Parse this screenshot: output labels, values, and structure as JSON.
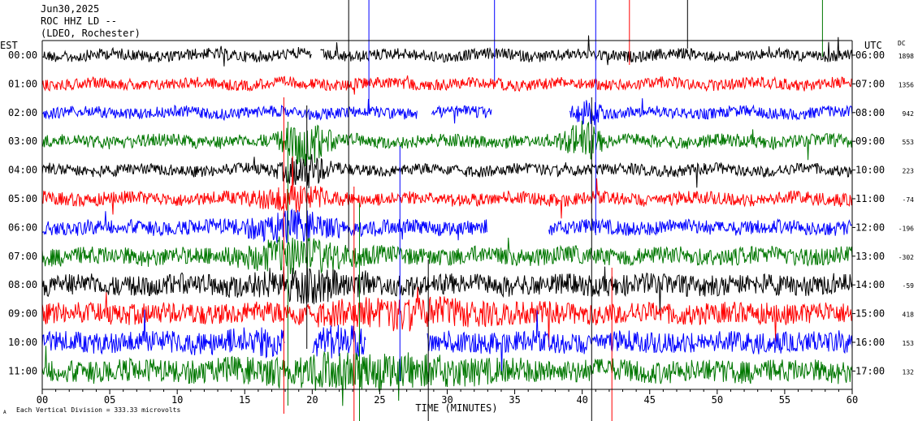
{
  "header": {
    "date": "Jun30,2025",
    "station": "ROC HHZ LD --",
    "network": "(LDEO, Rochester)",
    "left_tz": "EST",
    "right_tz": "UTC",
    "dc_label": "DC"
  },
  "footer": {
    "axis_title": "TIME (MINUTES)",
    "scale_note": "Each Vertical Division = 333.33 microvolts",
    "corner_mark": "A"
  },
  "colors": {
    "black": "#000000",
    "red": "#ff0000",
    "blue": "#0000ff",
    "green": "#007700"
  },
  "chart_data": {
    "type": "line",
    "title": "ROC HHZ LD -- (LDEO, Rochester)",
    "xlabel": "TIME (MINUTES)",
    "xlim": [
      0,
      60
    ],
    "x_ticks": [
      {
        "value": 0,
        "label": "00"
      },
      {
        "value": 5,
        "label": "05"
      },
      {
        "value": 10,
        "label": "10"
      },
      {
        "value": 15,
        "label": "15"
      },
      {
        "value": 20,
        "label": "20"
      },
      {
        "value": 25,
        "label": "25"
      },
      {
        "value": 30,
        "label": "30"
      },
      {
        "value": 35,
        "label": "35"
      },
      {
        "value": 40,
        "label": "40"
      },
      {
        "value": 45,
        "label": "45"
      },
      {
        "value": 50,
        "label": "50"
      },
      {
        "value": 55,
        "label": "55"
      },
      {
        "value": 60,
        "label": "60"
      }
    ],
    "rows": [
      {
        "est": "00:00",
        "utc": "06:00",
        "dc": "1898",
        "color": "black"
      },
      {
        "est": "01:00",
        "utc": "07:00",
        "dc": "1356",
        "color": "red"
      },
      {
        "est": "02:00",
        "utc": "08:00",
        "dc": "942",
        "color": "blue"
      },
      {
        "est": "03:00",
        "utc": "09:00",
        "dc": "553",
        "color": "green"
      },
      {
        "est": "04:00",
        "utc": "10:00",
        "dc": "223",
        "color": "black"
      },
      {
        "est": "05:00",
        "utc": "11:00",
        "dc": "-74",
        "color": "red"
      },
      {
        "est": "06:00",
        "utc": "12:00",
        "dc": "-196",
        "color": "blue"
      },
      {
        "est": "07:00",
        "utc": "13:00",
        "dc": "-302",
        "color": "green"
      },
      {
        "est": "08:00",
        "utc": "14:00",
        "dc": "-59",
        "color": "black"
      },
      {
        "est": "09:00",
        "utc": "15:00",
        "dc": "418",
        "color": "red"
      },
      {
        "est": "10:00",
        "utc": "16:00",
        "dc": "153",
        "color": "blue"
      },
      {
        "est": "11:00",
        "utc": "17:00",
        "dc": "132",
        "color": "green"
      }
    ],
    "scale_microvolts_per_division": 333.33
  }
}
